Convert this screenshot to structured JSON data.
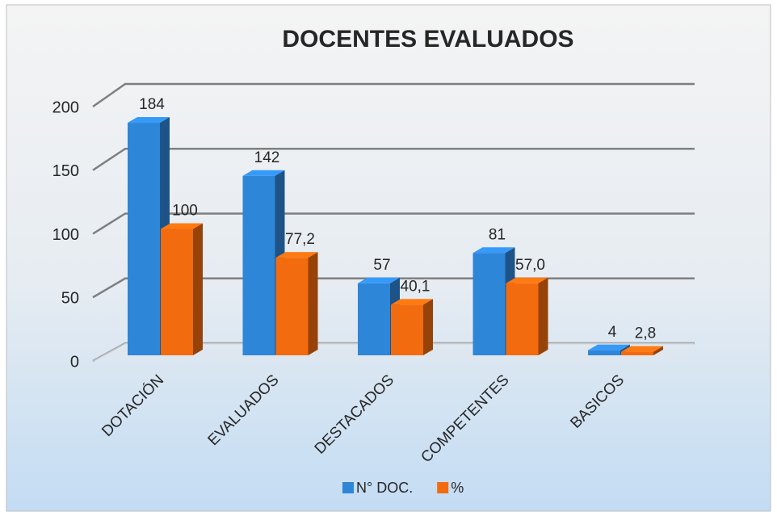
{
  "chart_data": {
    "type": "bar3d",
    "title": "DOCENTES EVALUADOS",
    "categories": [
      "DOTACIÓN",
      "EVALUADOS",
      "DESTACADOS",
      "COMPETENTES",
      "BASICOS"
    ],
    "series": [
      {
        "name": "N° DOC.",
        "color": "#2e86d9",
        "values": [
          184,
          142,
          57,
          81,
          4
        ]
      },
      {
        "name": "%",
        "color": "#f26b0f",
        "values": [
          100,
          77.2,
          40.1,
          57.0,
          2.8
        ],
        "value_labels": [
          "100",
          "77,2",
          "40,1",
          "57,0",
          "2,8"
        ]
      }
    ],
    "ylim": [
      0,
      200
    ],
    "yticks": [
      0,
      50,
      100,
      150,
      200
    ],
    "grid": true,
    "legend": "bottom"
  }
}
